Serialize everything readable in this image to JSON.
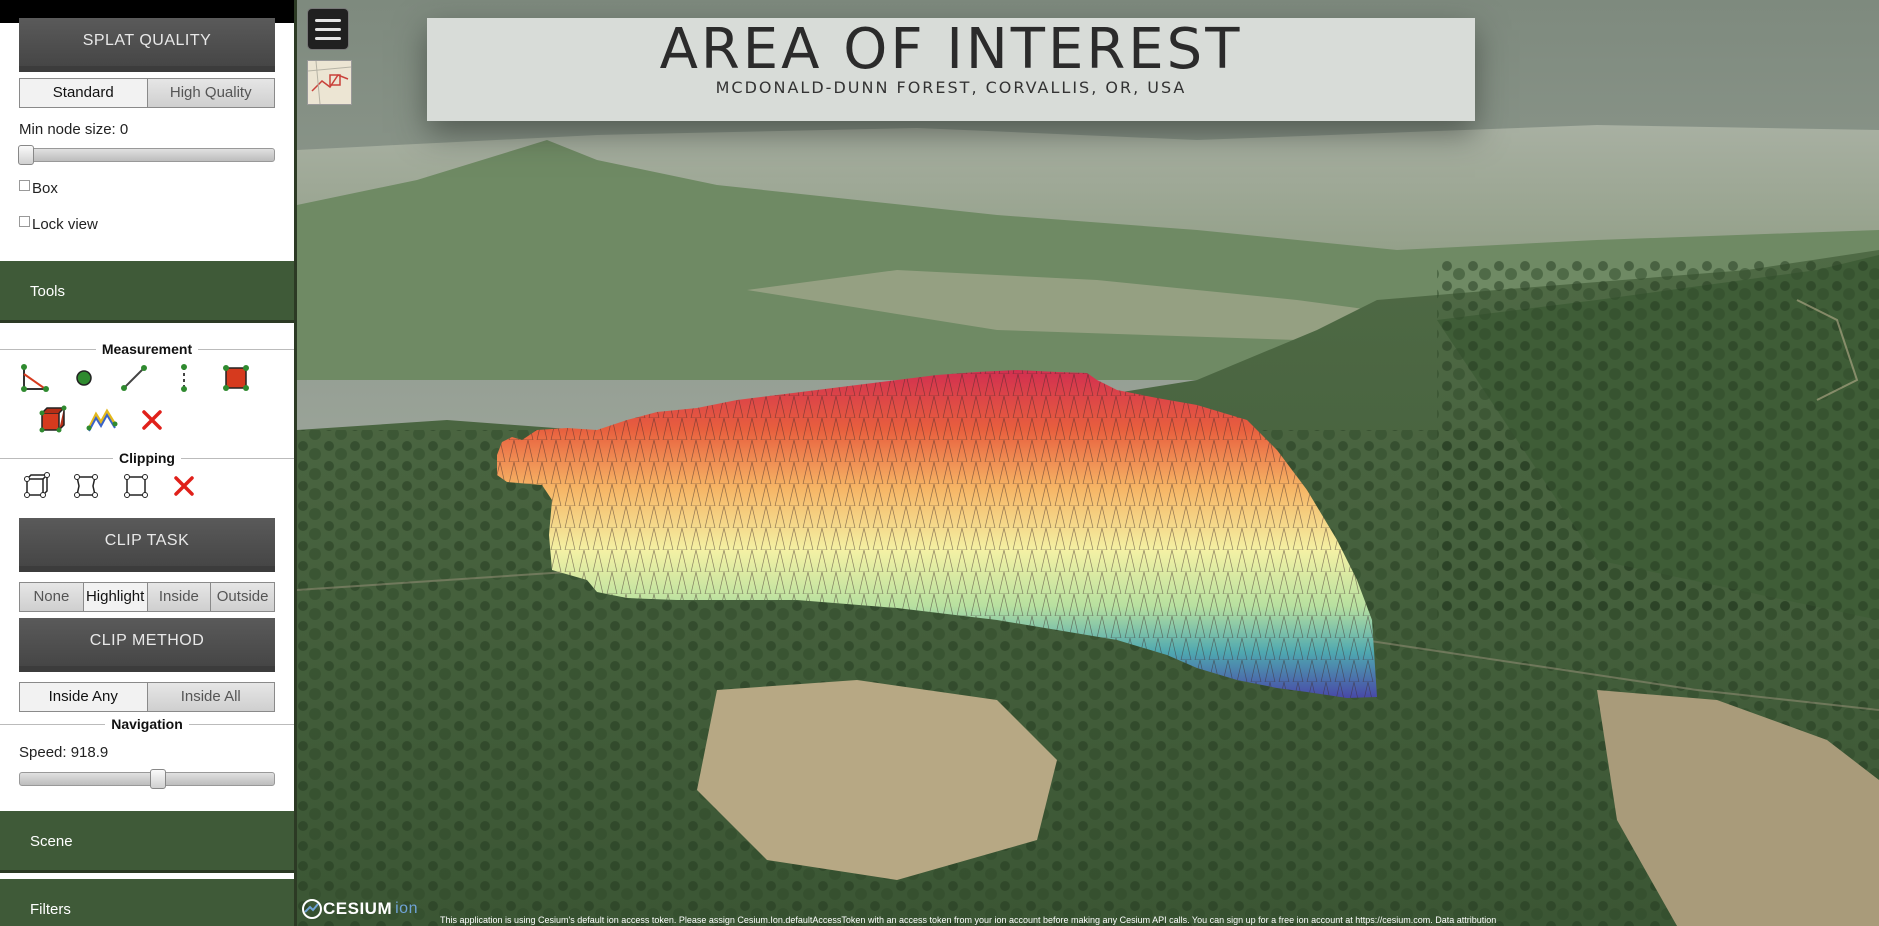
{
  "splat": {
    "title": "SPLAT QUALITY",
    "options": [
      "Standard",
      "High Quality"
    ],
    "min_node_label": "Min node size: 0",
    "min_node_value": 0,
    "box_label": "Box",
    "lock_label": "Lock view"
  },
  "tools_label": "Tools",
  "measurement": {
    "title": "Measurement",
    "icons": [
      "angle-tool-icon",
      "point-tool-icon",
      "distance-tool-icon",
      "height-tool-icon",
      "area-tool-icon",
      "volume-tool-icon",
      "height-profile-tool-icon",
      "remove-measurements-icon"
    ]
  },
  "clipping": {
    "title": "Clipping",
    "icons": [
      "clip-volume-icon",
      "clip-polygon-icon",
      "clip-screen-box-icon",
      "remove-clipping-icon"
    ],
    "task_title": "CLIP TASK",
    "task_options": [
      "None",
      "Highlight",
      "Inside",
      "Outside"
    ],
    "task_selected": "Highlight",
    "method_title": "CLIP METHOD",
    "method_options": [
      "Inside Any",
      "Inside All"
    ],
    "method_selected": "Inside Any"
  },
  "navigation": {
    "title": "Navigation",
    "speed_label": "Speed: 918.9",
    "speed_value": 918.9,
    "speed_fraction": 0.54
  },
  "scene_label": "Scene",
  "filters_label": "Filters",
  "viewer": {
    "title": "AREA OF INTEREST",
    "subtitle": "MCDONALD-DUNN FOREST, CORVALLIS, OR, USA",
    "logo_text": "CESIUM",
    "logo_suffix": "ion",
    "credit": "This application is using Cesium's default ion access token. Please assign Cesium.Ion.defaultAccessToken with an access token from your ion account before making any Cesium API calls. You can sign up for a free ion account at https://cesium.com.  Data attribution"
  },
  "colors": {
    "accordion": "#3f5a38",
    "section_button": "#505050",
    "tool_red": "#d63a1e",
    "tool_green": "#2f8a2f"
  }
}
